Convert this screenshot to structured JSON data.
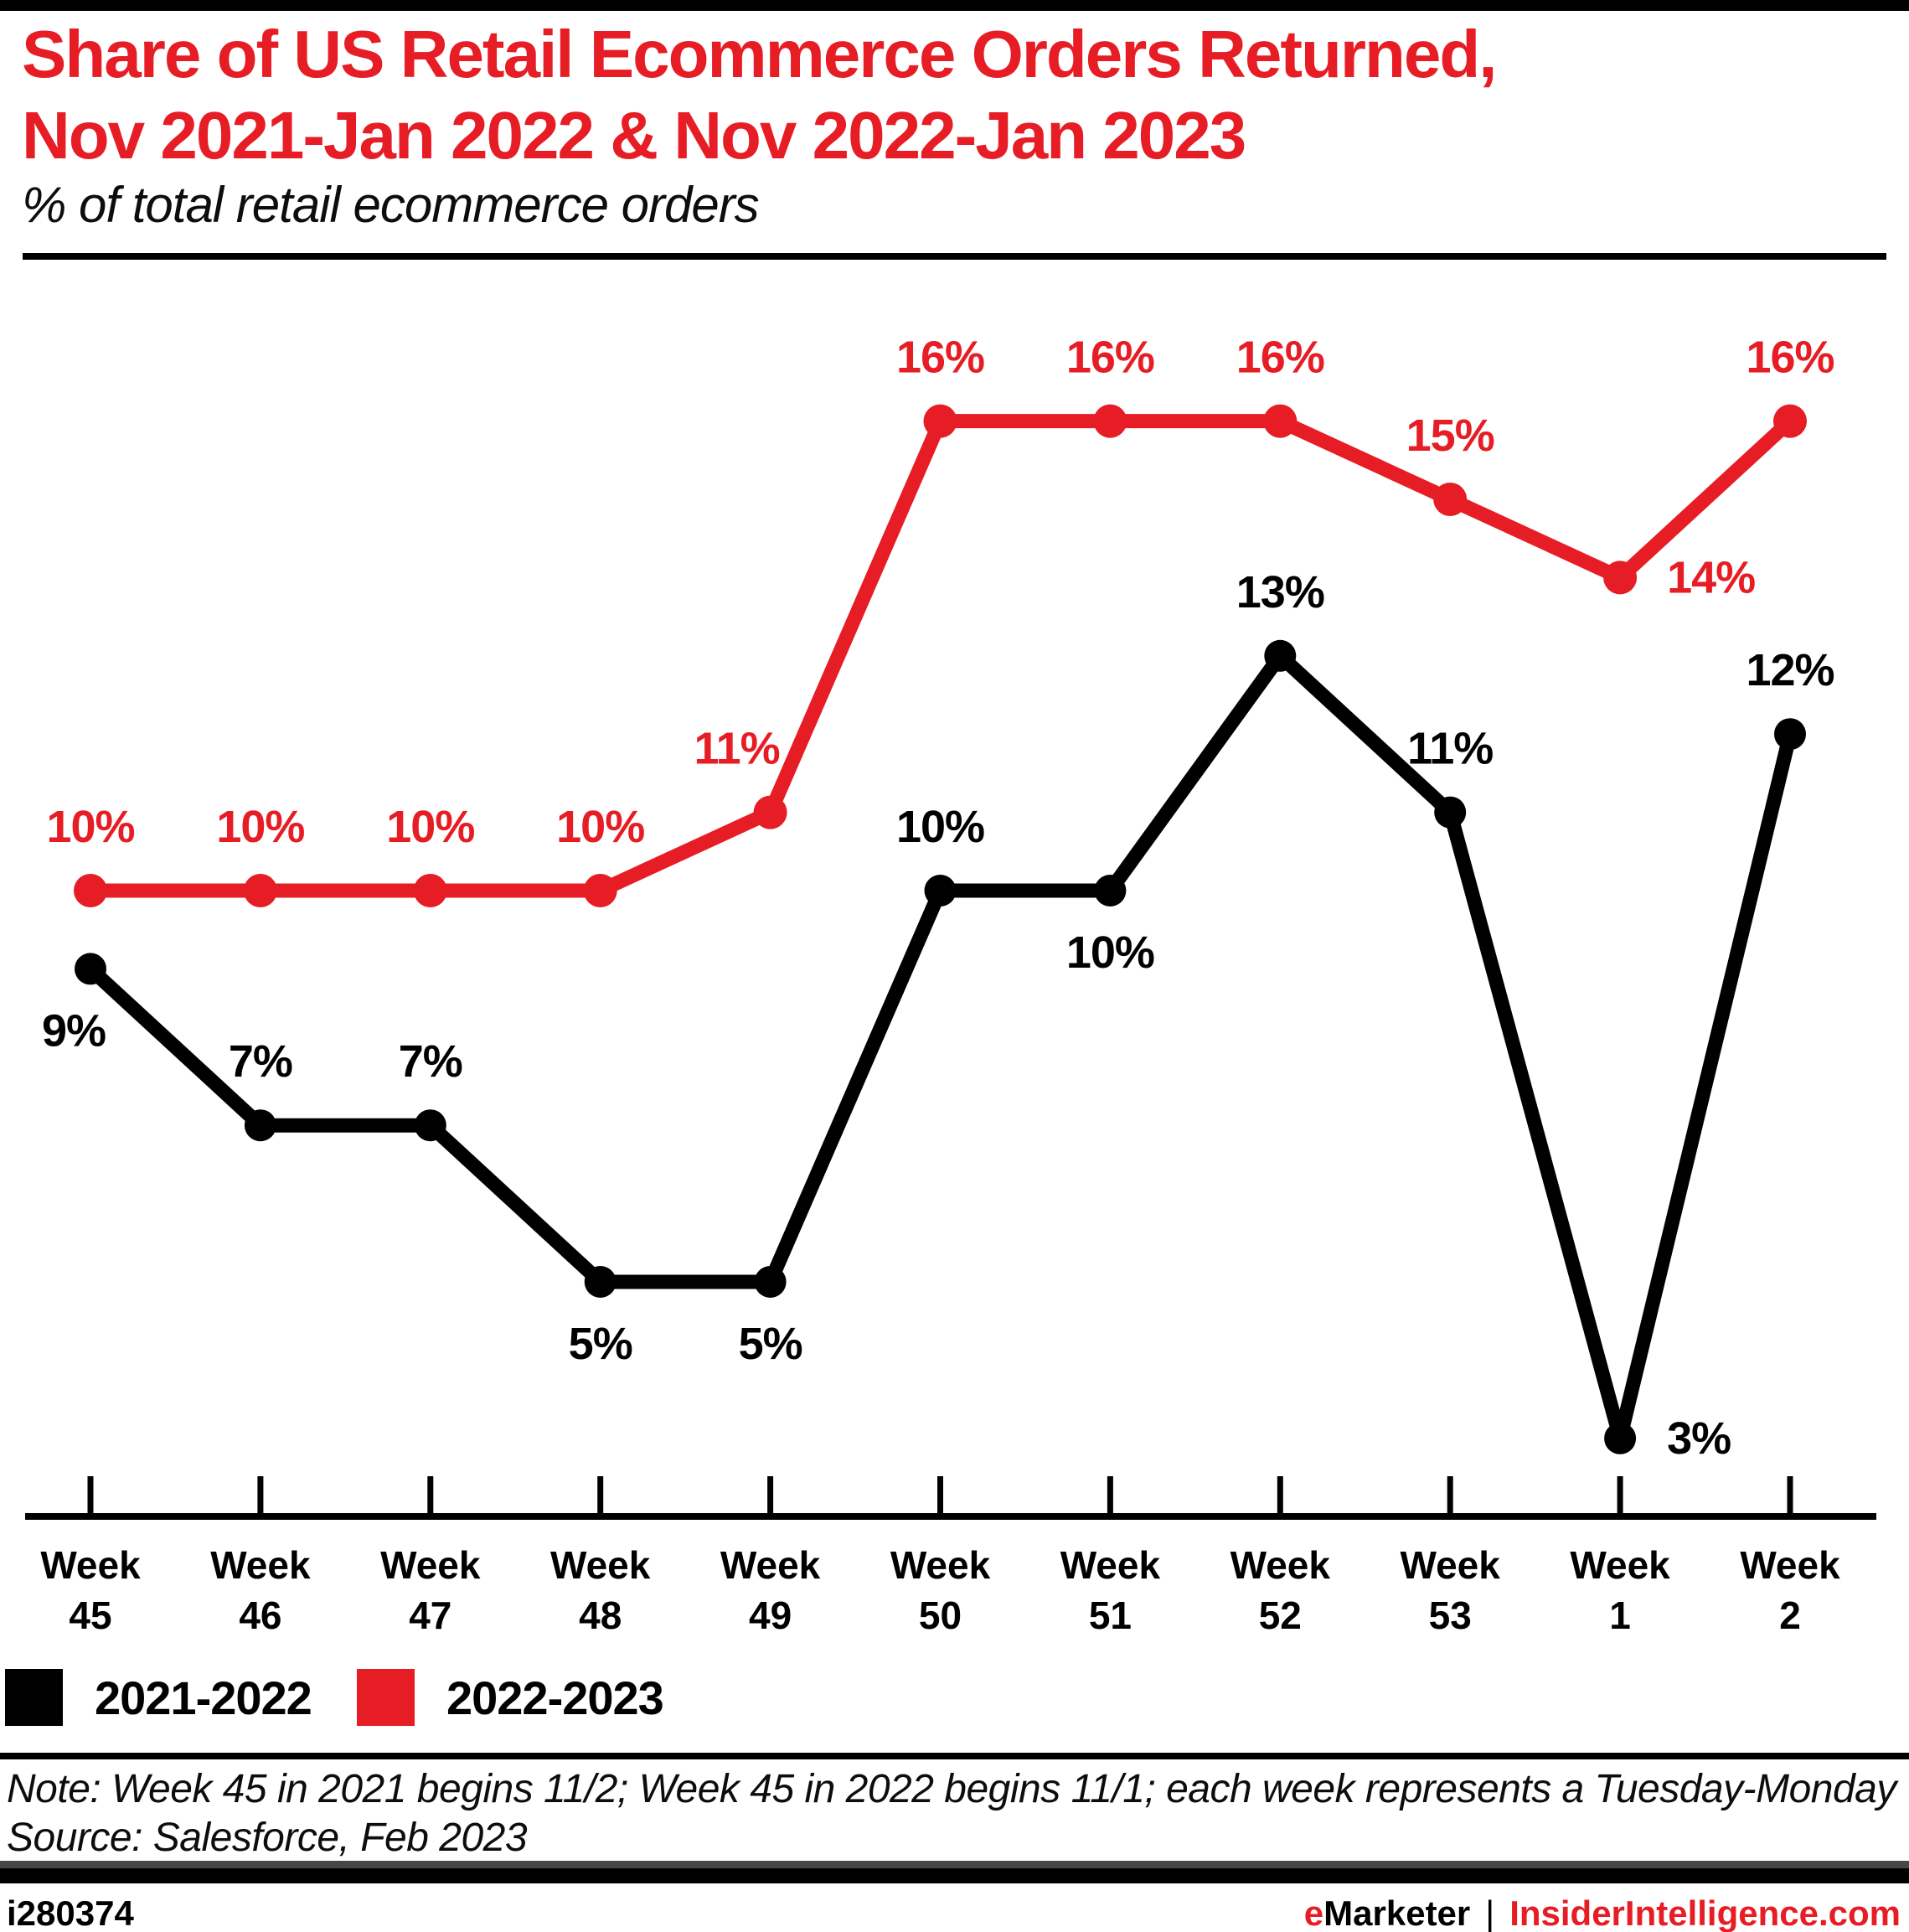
{
  "header": {
    "title_line1": "Share of US Retail Ecommerce Orders Returned,",
    "title_line2": "Nov 2021-Jan 2022 & Nov 2022-Jan 2023",
    "subtitle": "% of total retail ecommerce orders"
  },
  "chart_data": {
    "type": "line",
    "categories": [
      "Week 45",
      "Week 46",
      "Week 47",
      "Week 48",
      "Week 49",
      "Week 50",
      "Week 51",
      "Week 52",
      "Week 53",
      "Week 1",
      "Week 2"
    ],
    "value_suffix": "%",
    "ylim": [
      0,
      18
    ],
    "y_axis_visible": false,
    "grid": false,
    "legend_position": "bottom",
    "series": [
      {
        "name": "2021-2022",
        "color": "#000000",
        "values": [
          9,
          7,
          7,
          5,
          5,
          10,
          10,
          13,
          11,
          3,
          12
        ],
        "label_positions": [
          "below-left",
          "above",
          "above",
          "below",
          "below",
          "above",
          "below",
          "above",
          "above",
          "right",
          "above"
        ]
      },
      {
        "name": "2022-2023",
        "color": "#E71D25",
        "values": [
          10,
          10,
          10,
          10,
          11,
          16,
          16,
          16,
          15,
          14,
          16
        ],
        "label_positions": [
          "above",
          "above",
          "above",
          "above",
          "above-left",
          "above",
          "above",
          "above",
          "above",
          "right",
          "above"
        ]
      }
    ]
  },
  "legend": [
    {
      "label": "2021-2022",
      "color": "#000000"
    },
    {
      "label": "2022-2023",
      "color": "#E71D25"
    }
  ],
  "footnote": {
    "note": "Note: Week 45 in 2021 begins 11/2; Week 45 in 2022 begins 11/1; each week represents a Tuesday-Monday",
    "source": "Source: Salesforce, Feb 2023"
  },
  "footer": {
    "id": "i280374",
    "brand_e": "e",
    "brand_rest": "Marketer",
    "separator": "|",
    "site": "InsiderIntelligence.com"
  },
  "colors": {
    "accent": "#E71D25",
    "ink": "#000000",
    "footer_gray": "#474747"
  }
}
